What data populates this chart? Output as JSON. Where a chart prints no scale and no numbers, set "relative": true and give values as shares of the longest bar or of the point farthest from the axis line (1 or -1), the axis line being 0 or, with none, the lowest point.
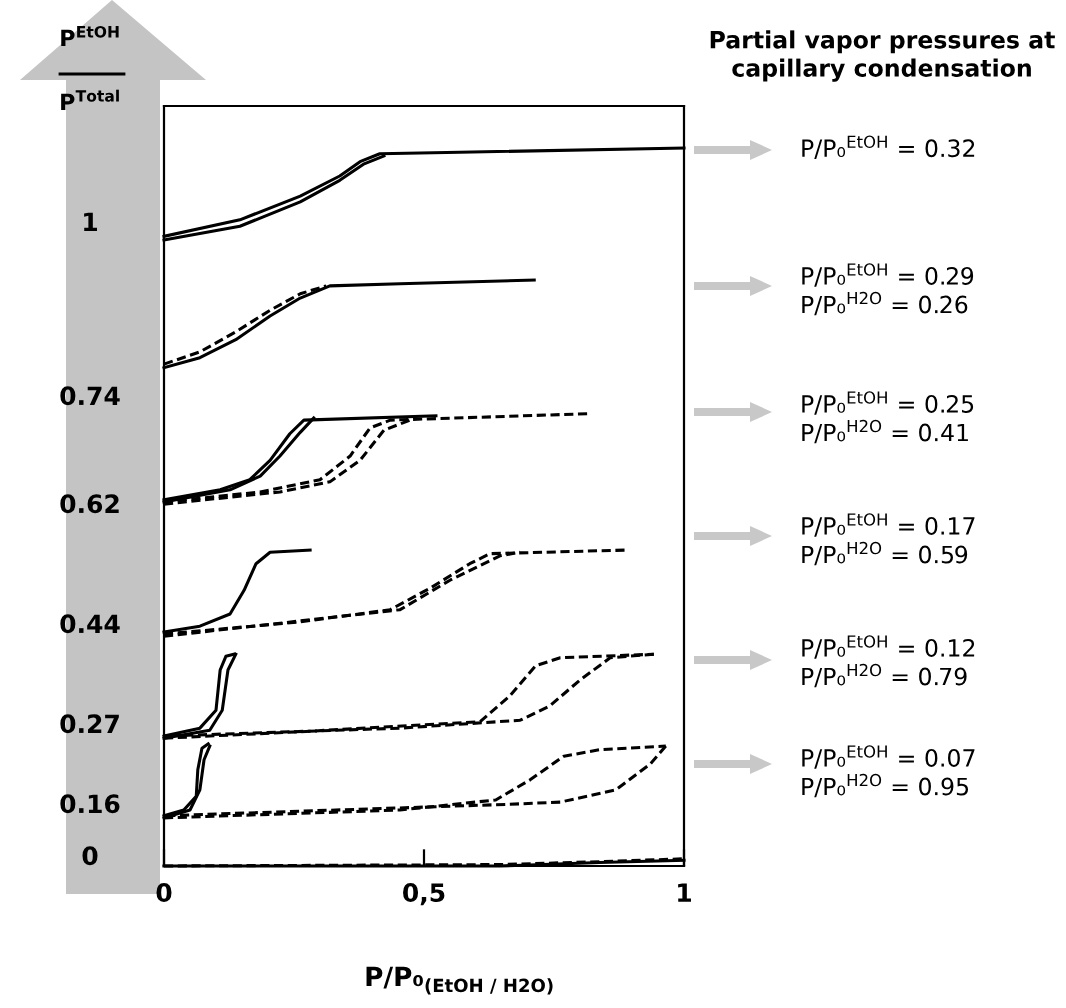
{
  "chart_data": {
    "type": "line",
    "relative": true,
    "title": "Partial vapor pressures at\ncapillary condensation",
    "xlabel": "P/P₀$_{(EtOH / H2O)}$",
    "ylabel": "P$^{EtOH}$\nP$^{Total}$",
    "xlim": [
      0,
      1
    ],
    "xticks": [
      0,
      {
        "value": 0.5,
        "label": "0,5"
      },
      1
    ],
    "grid": false,
    "marker": "none",
    "series": [
      {
        "color": "#000000",
        "line_style": "solid",
        "x": [
          0,
          0.146,
          0.262,
          0.338,
          0.377,
          0.415,
          0.569,
          1
        ],
        "values": [
          0.877,
          0.9,
          0.933,
          0.961,
          0.981,
          0.992,
          0.994,
          1.0
        ]
      },
      {
        "color": "#000000",
        "line_style": "solid",
        "x": [
          0,
          0.146,
          0.262,
          0.338,
          0.385,
          0.423
        ],
        "values": [
          0.872,
          0.891,
          0.925,
          0.955,
          0.978,
          0.989
        ]
      },
      {
        "color": "#000000",
        "line_style": "solid",
        "x": [
          0,
          0.069,
          0.138,
          0.204,
          0.262,
          0.319,
          0.454,
          0.712
        ],
        "values": [
          0.694,
          0.708,
          0.733,
          0.766,
          0.791,
          0.808,
          0.811,
          0.816
        ]
      },
      {
        "color": "#000000",
        "line_style": "dashed",
        "x": [
          0,
          0.069,
          0.138,
          0.204,
          0.262,
          0.312
        ],
        "values": [
          0.699,
          0.716,
          0.744,
          0.774,
          0.797,
          0.808
        ]
      },
      {
        "color": "#000000",
        "line_style": "solid",
        "x": [
          0,
          0.108,
          0.165,
          0.204,
          0.242,
          0.269,
          0.523
        ],
        "values": [
          0.51,
          0.524,
          0.538,
          0.565,
          0.602,
          0.621,
          0.627
        ]
      },
      {
        "color": "#000000",
        "line_style": "solid",
        "x": [
          0,
          0.127,
          0.185,
          0.223,
          0.262,
          0.288
        ],
        "values": [
          0.507,
          0.524,
          0.543,
          0.571,
          0.604,
          0.624
        ]
      },
      {
        "color": "#000000",
        "line_style": "dashed",
        "x": [
          0,
          0.185,
          0.3,
          0.358,
          0.396,
          0.435,
          0.819
        ],
        "values": [
          0.507,
          0.521,
          0.538,
          0.571,
          0.61,
          0.621,
          0.63
        ]
      },
      {
        "color": "#000000",
        "line_style": "dashed",
        "x": [
          0,
          0.223,
          0.319,
          0.377,
          0.423,
          0.473
        ],
        "values": [
          0.504,
          0.521,
          0.535,
          0.565,
          0.607,
          0.621
        ]
      },
      {
        "color": "#000000",
        "line_style": "solid",
        "x": [
          0,
          0.069,
          0.127,
          0.154,
          0.177,
          0.204,
          0.281
        ],
        "values": [
          0.326,
          0.334,
          0.351,
          0.384,
          0.421,
          0.437,
          0.44
        ]
      },
      {
        "color": "#000000",
        "line_style": "dashed",
        "x": [
          0,
          0.262,
          0.435,
          0.512,
          0.588,
          0.627,
          0.888
        ],
        "values": [
          0.323,
          0.34,
          0.357,
          0.387,
          0.421,
          0.435,
          0.44
        ]
      },
      {
        "color": "#000000",
        "line_style": "dashed",
        "x": [
          0,
          0.454,
          0.55,
          0.646,
          0.685
        ],
        "values": [
          0.32,
          0.357,
          0.398,
          0.432,
          0.437
        ]
      },
      {
        "color": "#000000",
        "line_style": "solid",
        "x": [
          0,
          0.069,
          0.1,
          0.108,
          0.119,
          0.135
        ],
        "values": [
          0.181,
          0.192,
          0.217,
          0.273,
          0.292,
          0.295
        ]
      },
      {
        "color": "#000000",
        "line_style": "solid",
        "x": [
          0,
          0.088,
          0.112,
          0.123,
          0.138
        ],
        "values": [
          0.178,
          0.189,
          0.217,
          0.273,
          0.295
        ]
      },
      {
        "color": "#000000",
        "line_style": "dashed",
        "x": [
          0,
          0.262,
          0.608,
          0.665,
          0.715,
          0.762,
          0.942
        ],
        "values": [
          0.178,
          0.187,
          0.201,
          0.237,
          0.279,
          0.29,
          0.295
        ]
      },
      {
        "color": "#000000",
        "line_style": "dashed",
        "x": [
          0.942,
          0.858,
          0.8,
          0.742,
          0.685,
          0.454,
          0
        ],
        "values": [
          0.295,
          0.29,
          0.259,
          0.223,
          0.203,
          0.192,
          0.181
        ]
      },
      {
        "color": "#000000",
        "line_style": "solid",
        "x": [
          0,
          0.038,
          0.062,
          0.065,
          0.073,
          0.085
        ],
        "values": [
          0.07,
          0.078,
          0.097,
          0.134,
          0.164,
          0.17
        ]
      },
      {
        "color": "#000000",
        "line_style": "solid",
        "x": [
          0,
          0.05,
          0.069,
          0.077,
          0.088
        ],
        "values": [
          0.067,
          0.078,
          0.106,
          0.148,
          0.167
        ]
      },
      {
        "color": "#000000",
        "line_style": "dashed",
        "x": [
          0,
          0.454,
          0.638,
          0.704,
          0.769,
          0.838,
          0.965
        ],
        "values": [
          0.067,
          0.078,
          0.092,
          0.12,
          0.153,
          0.162,
          0.167
        ]
      },
      {
        "color": "#000000",
        "line_style": "dashed",
        "x": [
          0.965,
          0.935,
          0.869,
          0.762,
          0.665,
          0
        ],
        "values": [
          0.167,
          0.142,
          0.106,
          0.089,
          0.086,
          0.07
        ]
      },
      {
        "color": "#000000",
        "line_style": "solid",
        "x": [
          0,
          0.646,
          0.838,
          1
        ],
        "values": [
          0,
          0,
          0.005,
          0.008
        ]
      },
      {
        "color": "#000000",
        "line_style": "dashed",
        "x": [
          0,
          0.646,
          0.838,
          1
        ],
        "values": [
          0,
          0.002,
          0.006,
          0.01
        ]
      }
    ],
    "annotations": [
      "1",
      "0.74",
      "0.62",
      "0.44",
      "0.27",
      "0.16",
      "0",
      "P/P₀$^{EtOH}$ = 0.32",
      "P/P₀$^{EtOH}$ = 0.29\nP/P₀$^{H2O}$ = 0.26",
      "P/P₀$^{EtOH}$ = 0.25\nP/P₀$^{H2O}$ = 0.41",
      "P/P₀$^{EtOH}$ = 0.17\nP/P₀$^{H2O}$ = 0.59",
      "P/P₀$^{EtOH}$ = 0.12\nP/P₀$^{H2O}$ = 0.79",
      "P/P₀$^{EtOH}$ = 0.07\nP/P₀$^{H2O}$ = 0.95"
    ]
  }
}
